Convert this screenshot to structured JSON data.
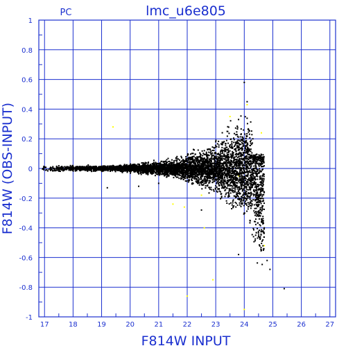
{
  "chart_data": {
    "type": "scatter",
    "title": "lmc_u6e805",
    "subtitle": "PC",
    "xlabel": "F814W  INPUT",
    "ylabel": "F814W  (OBS-INPUT)",
    "xlim": [
      16.8,
      27.2
    ],
    "ylim": [
      -1,
      1
    ],
    "x_ticks": [
      "17",
      "18",
      "19",
      "20",
      "21",
      "22",
      "23",
      "24",
      "25",
      "26",
      "27"
    ],
    "y_ticks": [
      "-1",
      "-0.8",
      "-0.6",
      "-0.4",
      "-0.2",
      "0",
      "0.2",
      "0.4",
      "0.6",
      "0.8",
      "1"
    ],
    "grid": true,
    "colors": {
      "axis": "#1a2fcf",
      "points": "#000000",
      "outliers": "#ffff00"
    },
    "series": [
      {
        "color": "#000000",
        "x": [
          17.0,
          17.3,
          17.6,
          17.9,
          18.2,
          18.5,
          18.8,
          19.1,
          19.4,
          19.7,
          20.0,
          20.3,
          20.6,
          20.9,
          21.2,
          21.5,
          21.8,
          22.0,
          22.2,
          22.4,
          22.6,
          22.8,
          23.0,
          23.2,
          23.4,
          23.6,
          23.8,
          24.0,
          24.1,
          24.2,
          24.3,
          24.4,
          24.5,
          24.6,
          24.7,
          24.8,
          24.9,
          25.4,
          21.0,
          20.3,
          19.2,
          22.5,
          23.8,
          24.0,
          24.5
        ],
        "y": [
          0.01,
          0.0,
          -0.01,
          0.01,
          0.0,
          0.01,
          -0.01,
          0.0,
          0.02,
          -0.02,
          0.01,
          -0.02,
          0.02,
          -0.03,
          0.03,
          -0.04,
          0.05,
          -0.06,
          0.08,
          -0.09,
          0.12,
          -0.14,
          0.18,
          -0.17,
          0.25,
          -0.22,
          0.33,
          -0.3,
          0.45,
          -0.35,
          0.2,
          -0.45,
          -0.25,
          -0.55,
          -0.4,
          -0.62,
          -0.68,
          -0.81,
          -0.1,
          -0.12,
          -0.13,
          -0.28,
          -0.58,
          0.58,
          -0.2
        ]
      },
      {
        "color": "#ffff00",
        "x": [
          19.4,
          21.5,
          21.9,
          22.0,
          22.5,
          22.9,
          23.5,
          23.8,
          24.1,
          24.6,
          24.7,
          24.0,
          22.6
        ],
        "y": [
          0.28,
          -0.24,
          -0.26,
          -0.86,
          -0.18,
          -0.75,
          0.35,
          -0.05,
          0.43,
          0.24,
          -0.52,
          -0.95,
          -0.4
        ]
      }
    ]
  }
}
